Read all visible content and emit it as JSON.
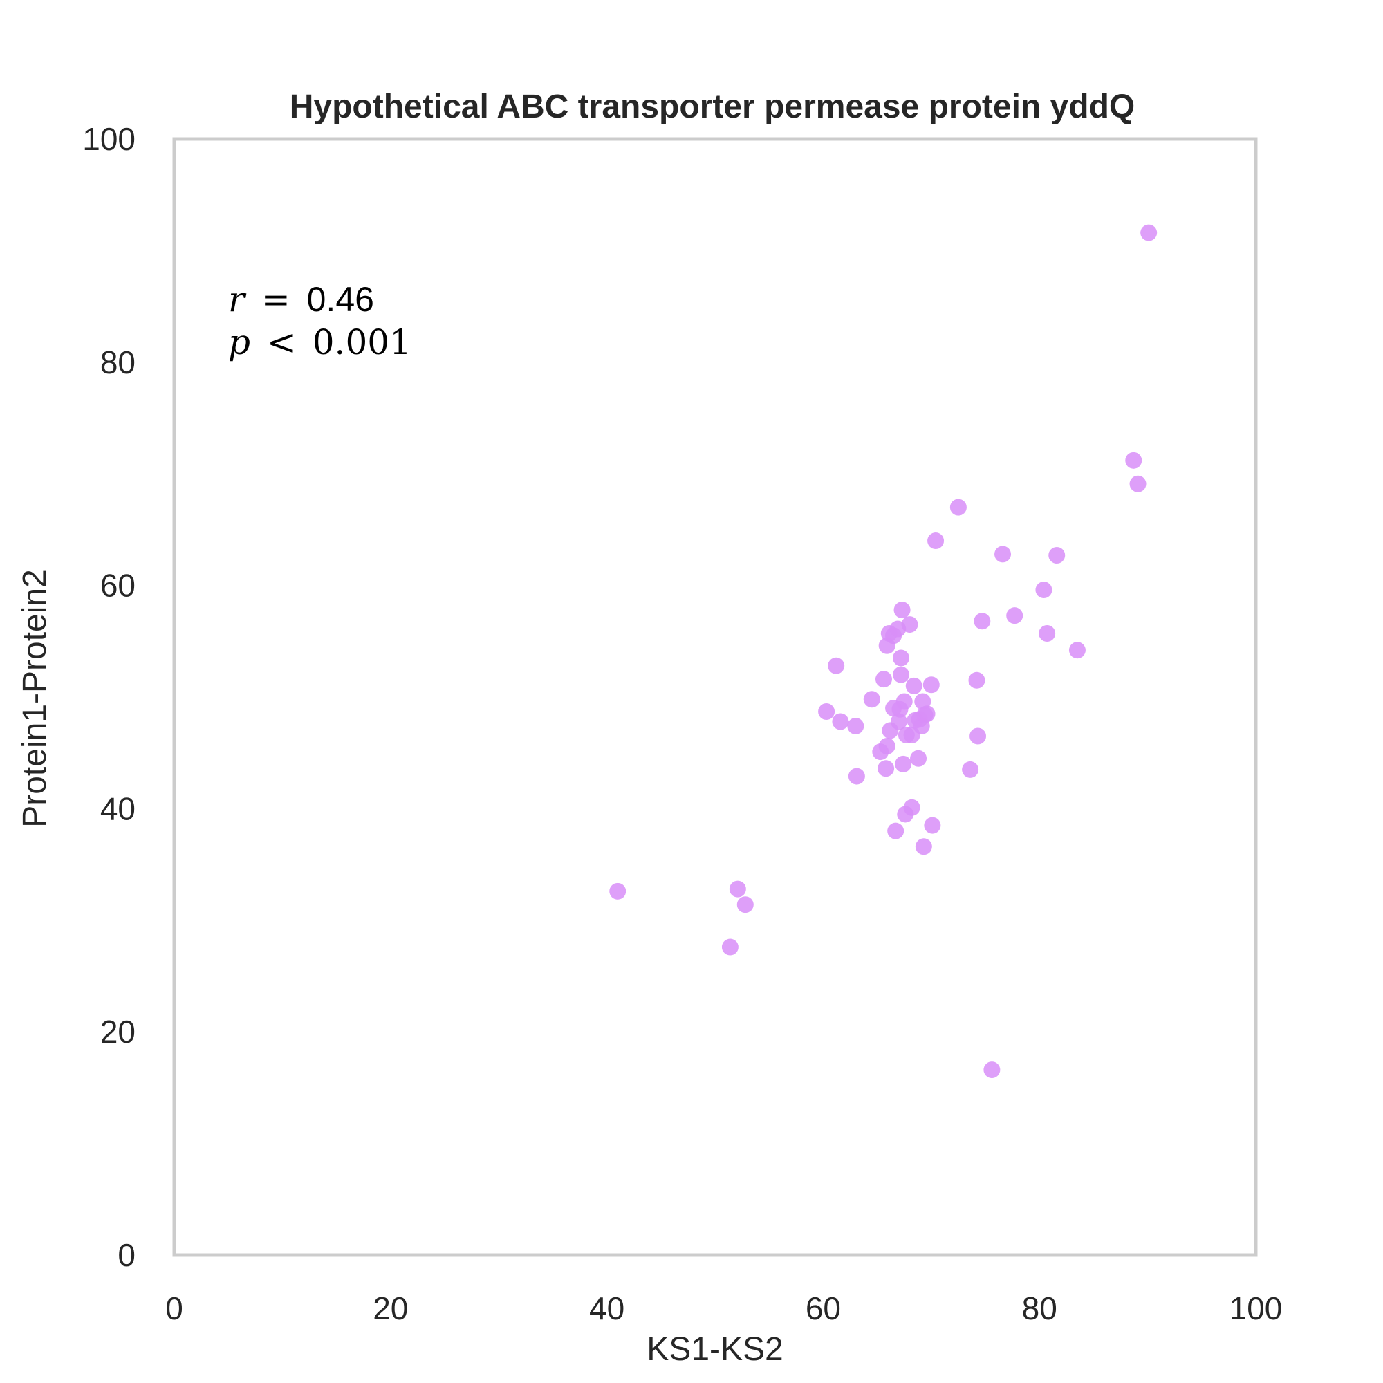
{
  "chart_data": {
    "type": "scatter",
    "title": "Hypothetical ABC transporter permease protein yddQ",
    "xlabel": "KS1-KS2",
    "ylabel": "Protein1-Protein2",
    "xlim": [
      0,
      100
    ],
    "ylim": [
      0,
      100
    ],
    "xticks": [
      "0",
      "20",
      "40",
      "60",
      "80",
      "100"
    ],
    "yticks": [
      "0",
      "20",
      "40",
      "60",
      "80",
      "100"
    ],
    "grid": false,
    "point_color": "#d88ef8",
    "frame_color": "#cccccc",
    "annotation": {
      "r_symbol": "r",
      "r_op": "=",
      "r_value": "0.46",
      "p_symbol": "p",
      "p_op": "<",
      "p_value": "0.001"
    },
    "points": [
      {
        "x": 41.0,
        "y": 32.6
      },
      {
        "x": 51.4,
        "y": 27.6
      },
      {
        "x": 52.1,
        "y": 32.8
      },
      {
        "x": 52.8,
        "y": 31.4
      },
      {
        "x": 60.3,
        "y": 48.7
      },
      {
        "x": 61.2,
        "y": 52.8
      },
      {
        "x": 61.6,
        "y": 47.8
      },
      {
        "x": 63.0,
        "y": 47.4
      },
      {
        "x": 63.1,
        "y": 42.9
      },
      {
        "x": 64.5,
        "y": 49.8
      },
      {
        "x": 65.3,
        "y": 45.1
      },
      {
        "x": 65.6,
        "y": 51.6
      },
      {
        "x": 65.8,
        "y": 43.6
      },
      {
        "x": 65.9,
        "y": 54.6
      },
      {
        "x": 65.9,
        "y": 45.6
      },
      {
        "x": 66.1,
        "y": 55.7
      },
      {
        "x": 66.2,
        "y": 47.0
      },
      {
        "x": 66.5,
        "y": 55.5
      },
      {
        "x": 66.5,
        "y": 49.0
      },
      {
        "x": 66.7,
        "y": 38.0
      },
      {
        "x": 66.9,
        "y": 56.1
      },
      {
        "x": 67.0,
        "y": 47.8
      },
      {
        "x": 67.1,
        "y": 48.9
      },
      {
        "x": 67.2,
        "y": 52.0
      },
      {
        "x": 67.2,
        "y": 53.5
      },
      {
        "x": 67.3,
        "y": 57.8
      },
      {
        "x": 67.4,
        "y": 44.0
      },
      {
        "x": 67.5,
        "y": 49.6
      },
      {
        "x": 67.6,
        "y": 39.5
      },
      {
        "x": 67.7,
        "y": 46.6
      },
      {
        "x": 68.0,
        "y": 56.5
      },
      {
        "x": 68.2,
        "y": 40.1
      },
      {
        "x": 68.2,
        "y": 46.6
      },
      {
        "x": 68.4,
        "y": 51.0
      },
      {
        "x": 68.5,
        "y": 47.9
      },
      {
        "x": 68.8,
        "y": 44.5
      },
      {
        "x": 68.9,
        "y": 48.0
      },
      {
        "x": 69.1,
        "y": 47.4
      },
      {
        "x": 69.2,
        "y": 49.6
      },
      {
        "x": 69.3,
        "y": 36.6
      },
      {
        "x": 69.4,
        "y": 48.4
      },
      {
        "x": 69.6,
        "y": 48.5
      },
      {
        "x": 70.0,
        "y": 51.1
      },
      {
        "x": 70.1,
        "y": 38.5
      },
      {
        "x": 70.4,
        "y": 64.0
      },
      {
        "x": 72.5,
        "y": 67.0
      },
      {
        "x": 73.6,
        "y": 43.5
      },
      {
        "x": 74.2,
        "y": 51.5
      },
      {
        "x": 74.3,
        "y": 46.5
      },
      {
        "x": 74.7,
        "y": 56.8
      },
      {
        "x": 75.6,
        "y": 16.6
      },
      {
        "x": 76.6,
        "y": 62.8
      },
      {
        "x": 77.7,
        "y": 57.3
      },
      {
        "x": 80.4,
        "y": 59.6
      },
      {
        "x": 80.7,
        "y": 55.7
      },
      {
        "x": 81.6,
        "y": 62.7
      },
      {
        "x": 83.5,
        "y": 54.2
      },
      {
        "x": 88.7,
        "y": 71.2
      },
      {
        "x": 89.1,
        "y": 69.1
      },
      {
        "x": 90.1,
        "y": 91.6
      }
    ]
  }
}
